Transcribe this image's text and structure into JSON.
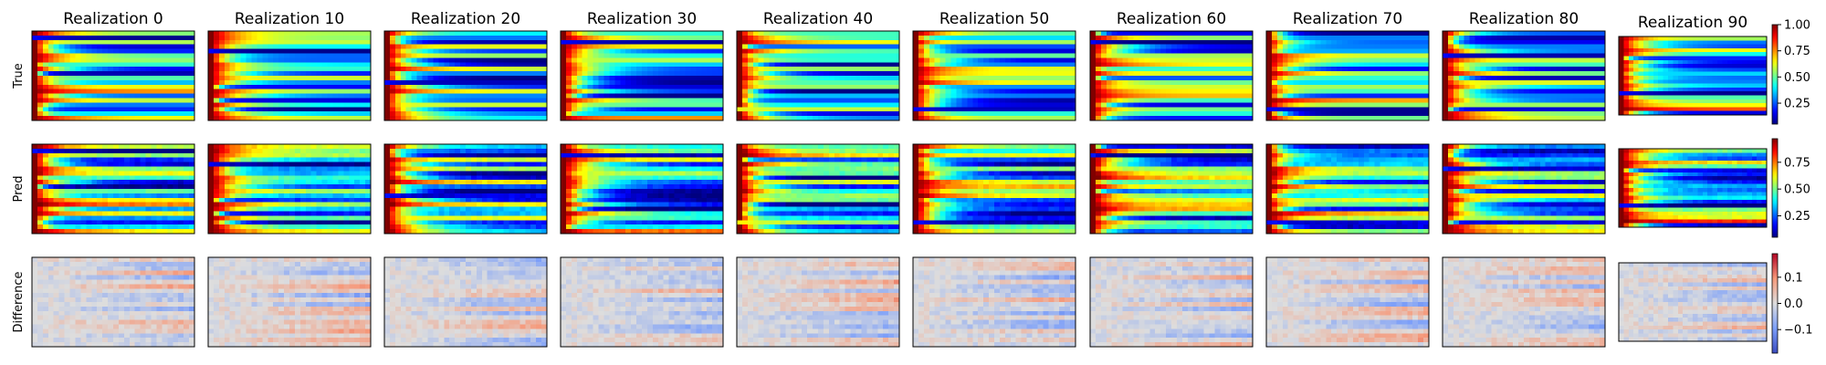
{
  "chart_data": {
    "type": "heatmap",
    "columns": [
      "Realization 0",
      "Realization 10",
      "Realization 20",
      "Realization 30",
      "Realization 40",
      "Realization 50",
      "Realization 60",
      "Realization 70",
      "Realization 80",
      "Realization 90"
    ],
    "rows": [
      {
        "label": "True",
        "colormap": "jet",
        "colorbar": {
          "range": [
            0.05,
            1.0
          ],
          "ticks": [
            0.25,
            0.5,
            0.75,
            1.0
          ],
          "tick_labels": [
            "0.25",
            "0.50",
            "0.75",
            "1.00"
          ]
        }
      },
      {
        "label": "Pred",
        "colormap": "jet",
        "colorbar": {
          "range": [
            0.05,
            0.97
          ],
          "ticks": [
            0.25,
            0.5,
            0.75
          ],
          "tick_labels": [
            "0.25",
            "0.50",
            "0.75"
          ]
        }
      },
      {
        "label": "Difference",
        "colormap": "coolwarm",
        "colorbar": {
          "range": [
            -0.19,
            0.19
          ],
          "ticks": [
            -0.1,
            0.0,
            0.1
          ],
          "tick_labels": [
            "−0.1",
            "0.0",
            "0.1"
          ]
        }
      }
    ],
    "grid": false,
    "colors": {
      "frame": "#000000",
      "background": "#ffffff"
    }
  }
}
